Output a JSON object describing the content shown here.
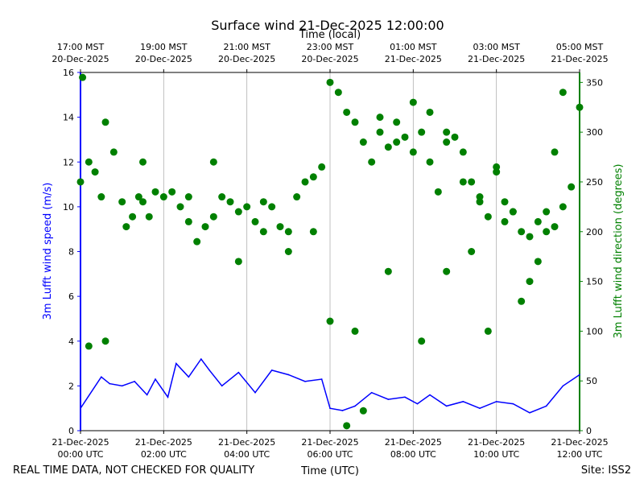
{
  "chart_data": {
    "type": "line",
    "title": "Surface wind 21-Dec-2025 12:00:00",
    "top_xlabel": "Time (local)",
    "xlabel": "Time (UTC)",
    "ylabel": "3m Lufft wind speed (m/s)",
    "y2label": "3m Lufft wind direction (degrees)",
    "xlim_hours": [
      0,
      12
    ],
    "ylim": [
      0,
      16
    ],
    "y2lim": [
      0,
      360
    ],
    "yticks": [
      "0",
      "2",
      "4",
      "6",
      "8",
      "10",
      "12",
      "14",
      "16"
    ],
    "y2ticks": [
      "0",
      "50",
      "100",
      "150",
      "200",
      "250",
      "300",
      "350"
    ],
    "grid": "vertical",
    "bottom_ticks": [
      {
        "hour": 0,
        "date": "21-Dec-2025",
        "time": "00:00 UTC"
      },
      {
        "hour": 2,
        "date": "21-Dec-2025",
        "time": "02:00 UTC"
      },
      {
        "hour": 4,
        "date": "21-Dec-2025",
        "time": "04:00 UTC"
      },
      {
        "hour": 6,
        "date": "21-Dec-2025",
        "time": "06:00 UTC"
      },
      {
        "hour": 8,
        "date": "21-Dec-2025",
        "time": "08:00 UTC"
      },
      {
        "hour": 10,
        "date": "21-Dec-2025",
        "time": "10:00 UTC"
      },
      {
        "hour": 12,
        "date": "21-Dec-2025",
        "time": "12:00 UTC"
      }
    ],
    "top_ticks": [
      {
        "hour": 0,
        "time": "17:00 MST",
        "date": "20-Dec-2025"
      },
      {
        "hour": 2,
        "time": "19:00 MST",
        "date": "20-Dec-2025"
      },
      {
        "hour": 4,
        "time": "21:00 MST",
        "date": "20-Dec-2025"
      },
      {
        "hour": 6,
        "time": "23:00 MST",
        "date": "20-Dec-2025"
      },
      {
        "hour": 8,
        "time": "01:00 MST",
        "date": "21-Dec-2025"
      },
      {
        "hour": 10,
        "time": "03:00 MST",
        "date": "21-Dec-2025"
      },
      {
        "hour": 12,
        "time": "05:00 MST",
        "date": "21-Dec-2025"
      }
    ],
    "series": [
      {
        "name": "3m Lufft wind speed",
        "axis": "left",
        "style": "line",
        "color": "#0000ff",
        "x": [
          0,
          0.5,
          0.7,
          1,
          1.3,
          1.6,
          1.8,
          2.1,
          2.3,
          2.6,
          2.9,
          3.1,
          3.4,
          3.8,
          4.2,
          4.6,
          5,
          5.4,
          5.8,
          6,
          6.3,
          6.6,
          7,
          7.4,
          7.8,
          8.1,
          8.4,
          8.8,
          9.2,
          9.6,
          10,
          10.4,
          10.8,
          11.2,
          11.6,
          12
        ],
        "y": [
          1.0,
          2.4,
          2.1,
          2.0,
          2.2,
          1.6,
          2.3,
          1.5,
          3.0,
          2.4,
          3.2,
          2.7,
          2.0,
          2.6,
          1.7,
          2.7,
          2.5,
          2.2,
          2.3,
          1.0,
          0.9,
          1.1,
          1.7,
          1.4,
          1.5,
          1.2,
          1.6,
          1.1,
          1.3,
          1.0,
          1.3,
          1.2,
          0.8,
          1.1,
          2.0,
          2.5
        ]
      },
      {
        "name": "3m Lufft wind direction",
        "axis": "right",
        "style": "markers",
        "color": "#008000",
        "x": [
          0,
          0.05,
          0.2,
          0.35,
          0.5,
          0.6,
          0.8,
          1,
          1.1,
          1.25,
          1.4,
          1.5,
          1.65,
          1.8,
          2,
          2.2,
          2.4,
          2.6,
          2.8,
          3.0,
          3.2,
          3.4,
          3.6,
          3.8,
          4,
          4.2,
          4.4,
          4.6,
          4.8,
          5,
          5.2,
          5.4,
          5.6,
          5.8,
          6,
          6.2,
          6.4,
          6.6,
          6.8,
          7,
          7.2,
          7.4,
          7.6,
          7.8,
          8,
          8.2,
          8.4,
          8.6,
          8.8,
          9,
          9.2,
          9.4,
          9.6,
          9.8,
          10,
          10.2,
          10.4,
          10.6,
          10.8,
          11,
          11.2,
          11.4,
          11.6,
          11.8,
          12,
          0.2,
          0.6,
          1.5,
          2.6,
          3.2,
          3.8,
          4.4,
          5,
          5.6,
          6,
          6.4,
          6.8,
          7.2,
          7.6,
          8,
          8.4,
          8.8,
          9.2,
          9.6,
          10,
          10.4,
          10.8,
          11.2,
          11.6,
          6.6,
          7.4,
          8.2,
          8.8,
          9.4,
          9.8,
          10.2,
          10.6,
          11,
          11.4
        ],
        "y": [
          250,
          355,
          270,
          260,
          235,
          310,
          280,
          230,
          205,
          215,
          235,
          230,
          215,
          240,
          235,
          240,
          225,
          210,
          190,
          205,
          215,
          235,
          230,
          220,
          225,
          210,
          230,
          225,
          205,
          200,
          235,
          250,
          255,
          265,
          350,
          340,
          320,
          310,
          290,
          270,
          300,
          285,
          310,
          295,
          280,
          300,
          270,
          240,
          300,
          295,
          250,
          250,
          235,
          215,
          265,
          210,
          220,
          200,
          195,
          210,
          220,
          205,
          225,
          245,
          325,
          85,
          90,
          270,
          235,
          270,
          170,
          200,
          180,
          200,
          110,
          5,
          20,
          315,
          290,
          330,
          320,
          290,
          280,
          230,
          260,
          220,
          150,
          200,
          340,
          100,
          160,
          90,
          160,
          180,
          100,
          230,
          130,
          170,
          280
        ]
      }
    ]
  },
  "footer": {
    "left_note": "REAL TIME DATA, NOT CHECKED FOR QUALITY",
    "site": "Site: ISS2"
  }
}
